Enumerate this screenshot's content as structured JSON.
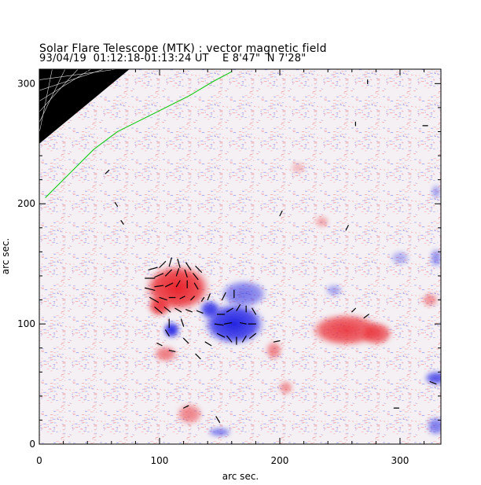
{
  "header": {
    "title": "Solar Flare Telescope (MTK) : vector magnetic field",
    "info": "93/04/19  01:12:18-01:13:24 UT    E 8'47\"  N 7'28\""
  },
  "chart_data": {
    "type": "heatmap",
    "title": "Solar Flare Telescope (MTK) : vector magnetic field",
    "subtitle": "93/04/19  01:12:18-01:13:24 UT    E 8'47\"  N 7'28\"",
    "xlabel": "arc sec.",
    "ylabel": "arc sec.",
    "xlim": [
      0,
      334
    ],
    "ylim": [
      0,
      312
    ],
    "xticks": [
      0,
      100,
      200,
      300
    ],
    "yticks": [
      0,
      100,
      200,
      300
    ],
    "colors": {
      "positive_polarity": "#e8202a",
      "negative_polarity": "#2a2ae0",
      "background": "#f4f0f4",
      "limb_contour": "#22cc22",
      "transverse_vectors": "#000000"
    },
    "regions": [
      {
        "polarity": "positive",
        "x": 115,
        "y": 130,
        "rx": 28,
        "ry": 20,
        "strength": 1.0
      },
      {
        "polarity": "positive",
        "x": 100,
        "y": 115,
        "rx": 10,
        "ry": 9,
        "strength": 0.9
      },
      {
        "polarity": "negative",
        "x": 162,
        "y": 100,
        "rx": 26,
        "ry": 18,
        "strength": 1.0
      },
      {
        "polarity": "negative",
        "x": 170,
        "y": 125,
        "rx": 20,
        "ry": 12,
        "strength": 0.6
      },
      {
        "polarity": "negative",
        "x": 110,
        "y": 95,
        "rx": 7,
        "ry": 7,
        "strength": 1.0
      },
      {
        "polarity": "negative",
        "x": 142,
        "y": 112,
        "rx": 9,
        "ry": 8,
        "strength": 0.9
      },
      {
        "polarity": "positive",
        "x": 255,
        "y": 95,
        "rx": 30,
        "ry": 14,
        "strength": 0.85
      },
      {
        "polarity": "positive",
        "x": 280,
        "y": 92,
        "rx": 14,
        "ry": 10,
        "strength": 0.8
      },
      {
        "polarity": "positive",
        "x": 105,
        "y": 75,
        "rx": 10,
        "ry": 7,
        "strength": 0.6
      },
      {
        "polarity": "positive",
        "x": 195,
        "y": 78,
        "rx": 7,
        "ry": 8,
        "strength": 0.55
      },
      {
        "polarity": "positive",
        "x": 205,
        "y": 47,
        "rx": 6,
        "ry": 6,
        "strength": 0.5
      },
      {
        "polarity": "positive",
        "x": 125,
        "y": 25,
        "rx": 11,
        "ry": 9,
        "strength": 0.55
      },
      {
        "polarity": "negative",
        "x": 150,
        "y": 10,
        "rx": 10,
        "ry": 4,
        "strength": 0.6
      },
      {
        "polarity": "negative",
        "x": 330,
        "y": 55,
        "rx": 10,
        "ry": 6,
        "strength": 0.8
      },
      {
        "polarity": "negative",
        "x": 330,
        "y": 15,
        "rx": 8,
        "ry": 8,
        "strength": 0.6
      },
      {
        "polarity": "positive",
        "x": 235,
        "y": 185,
        "rx": 6,
        "ry": 5,
        "strength": 0.4
      },
      {
        "polarity": "positive",
        "x": 325,
        "y": 120,
        "rx": 7,
        "ry": 6,
        "strength": 0.5
      },
      {
        "polarity": "negative",
        "x": 300,
        "y": 155,
        "rx": 8,
        "ry": 6,
        "strength": 0.35
      },
      {
        "polarity": "negative",
        "x": 245,
        "y": 128,
        "rx": 7,
        "ry": 5,
        "strength": 0.4
      },
      {
        "polarity": "negative",
        "x": 330,
        "y": 155,
        "rx": 5,
        "ry": 8,
        "strength": 0.5
      },
      {
        "polarity": "negative",
        "x": 330,
        "y": 210,
        "rx": 4,
        "ry": 6,
        "strength": 0.45
      },
      {
        "polarity": "positive",
        "x": 215,
        "y": 230,
        "rx": 6,
        "ry": 5,
        "strength": 0.3
      }
    ],
    "limb_contour": [
      [
        5,
        205
      ],
      [
        25,
        225
      ],
      [
        45,
        245
      ],
      [
        65,
        260
      ],
      [
        95,
        275
      ],
      [
        125,
        290
      ],
      [
        145,
        302
      ],
      [
        160,
        310
      ]
    ],
    "limb_corner": {
      "x_max": 75,
      "y_min": 250
    },
    "vectors": [
      [
        91,
        145,
        7,
        2
      ],
      [
        100,
        147,
        5,
        5
      ],
      [
        108,
        148,
        2,
        7
      ],
      [
        117,
        147,
        -2,
        7
      ],
      [
        126,
        145,
        -4,
        6
      ],
      [
        135,
        143,
        -5,
        5
      ],
      [
        88,
        138,
        8,
        0
      ],
      [
        96,
        139,
        7,
        3
      ],
      [
        105,
        140,
        5,
        5
      ],
      [
        114,
        140,
        2,
        6
      ],
      [
        123,
        139,
        -2,
        6
      ],
      [
        132,
        137,
        -4,
        5
      ],
      [
        88,
        130,
        8,
        -2
      ],
      [
        96,
        131,
        7,
        1
      ],
      [
        105,
        131,
        6,
        3
      ],
      [
        114,
        131,
        3,
        5
      ],
      [
        123,
        130,
        0,
        6
      ],
      [
        132,
        129,
        -3,
        5
      ],
      [
        92,
        122,
        7,
        -4
      ],
      [
        100,
        122,
        6,
        -2
      ],
      [
        108,
        122,
        5,
        0
      ],
      [
        117,
        121,
        4,
        2
      ],
      [
        126,
        120,
        3,
        3
      ],
      [
        135,
        119,
        2,
        3
      ],
      [
        96,
        114,
        6,
        -5
      ],
      [
        104,
        114,
        5,
        -4
      ],
      [
        113,
        113,
        5,
        -3
      ],
      [
        122,
        112,
        5,
        -2
      ],
      [
        131,
        111,
        5,
        -2
      ],
      [
        148,
        108,
        6,
        0
      ],
      [
        156,
        110,
        5,
        3
      ],
      [
        164,
        111,
        3,
        5
      ],
      [
        172,
        110,
        0,
        5
      ],
      [
        180,
        108,
        -3,
        5
      ],
      [
        146,
        100,
        7,
        -1
      ],
      [
        154,
        100,
        6,
        1
      ],
      [
        172,
        100,
        -5,
        1
      ],
      [
        180,
        100,
        -6,
        0
      ],
      [
        148,
        92,
        6,
        -3
      ],
      [
        156,
        90,
        4,
        -5
      ],
      [
        164,
        89,
        0,
        -6
      ],
      [
        172,
        90,
        -3,
        -5
      ],
      [
        180,
        92,
        -5,
        -4
      ],
      [
        152,
        120,
        3,
        6
      ],
      [
        162,
        122,
        0,
        6
      ],
      [
        140,
        120,
        2,
        5
      ],
      [
        108,
        104,
        0,
        -7
      ],
      [
        118,
        104,
        2,
        -6
      ],
      [
        105,
        95,
        3,
        -5
      ],
      [
        120,
        88,
        4,
        -4
      ],
      [
        98,
        84,
        4,
        -2
      ],
      [
        108,
        78,
        5,
        -1
      ],
      [
        138,
        85,
        5,
        -3
      ],
      [
        130,
        75,
        4,
        -4
      ],
      [
        270,
        105,
        4,
        3
      ],
      [
        195,
        85,
        5,
        1
      ],
      [
        200,
        190,
        2,
        4
      ],
      [
        255,
        178,
        2,
        4
      ],
      [
        150,
        18,
        -3,
        5
      ],
      [
        120,
        30,
        4,
        2
      ],
      [
        65,
        198,
        -2,
        3
      ],
      [
        70,
        183,
        -2,
        3
      ],
      [
        55,
        225,
        3,
        3
      ],
      [
        260,
        110,
        3,
        3
      ],
      [
        295,
        30,
        4,
        0
      ],
      [
        325,
        52,
        5,
        -2
      ],
      [
        323,
        265,
        -4,
        0
      ],
      [
        273,
        300,
        0,
        3
      ],
      [
        263,
        265,
        0,
        3
      ]
    ]
  }
}
